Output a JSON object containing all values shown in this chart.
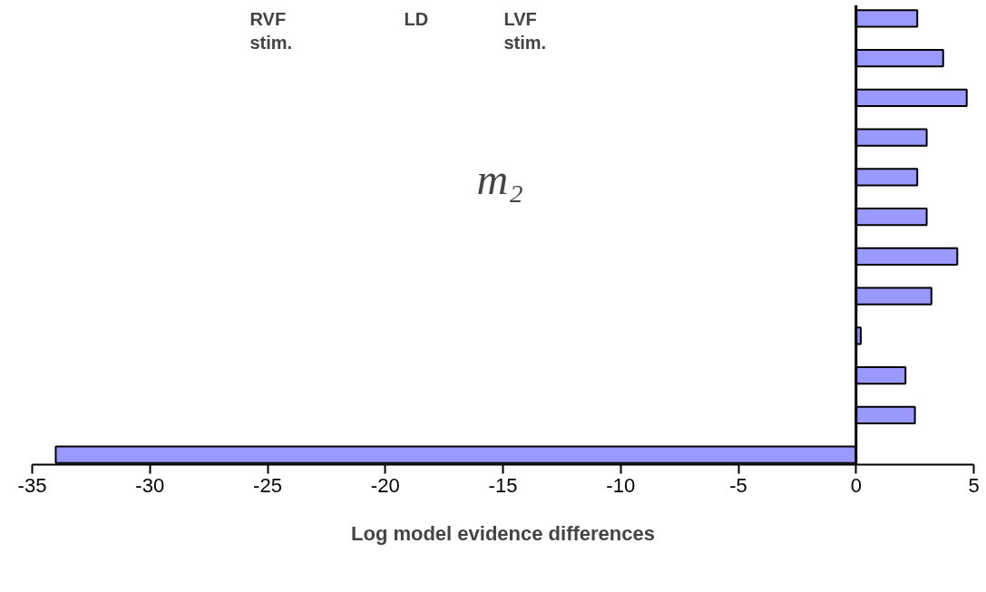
{
  "chart_data": {
    "type": "bar",
    "orientation": "horizontal",
    "xlabel": "Log model evidence differences",
    "categories": [
      null,
      null,
      null,
      null,
      null,
      null,
      null,
      null,
      null,
      null,
      null,
      null
    ],
    "values": [
      2.6,
      3.7,
      4.7,
      3.0,
      2.6,
      3.0,
      4.3,
      3.2,
      0.2,
      2.1,
      2.5,
      -34
    ],
    "color": "#9999ff",
    "xlim": [
      -35,
      5
    ],
    "xticks": [
      -35,
      -30,
      -25,
      -20,
      -15,
      -10,
      -5,
      0,
      5
    ],
    "ref_lines": [
      {
        "axis": "x",
        "value": 0
      }
    ],
    "annotations": [
      "RVF\nstim.",
      "LD",
      "LVF\nstim.",
      "m₂"
    ],
    "grid": false,
    "tick_labels": "x"
  }
}
